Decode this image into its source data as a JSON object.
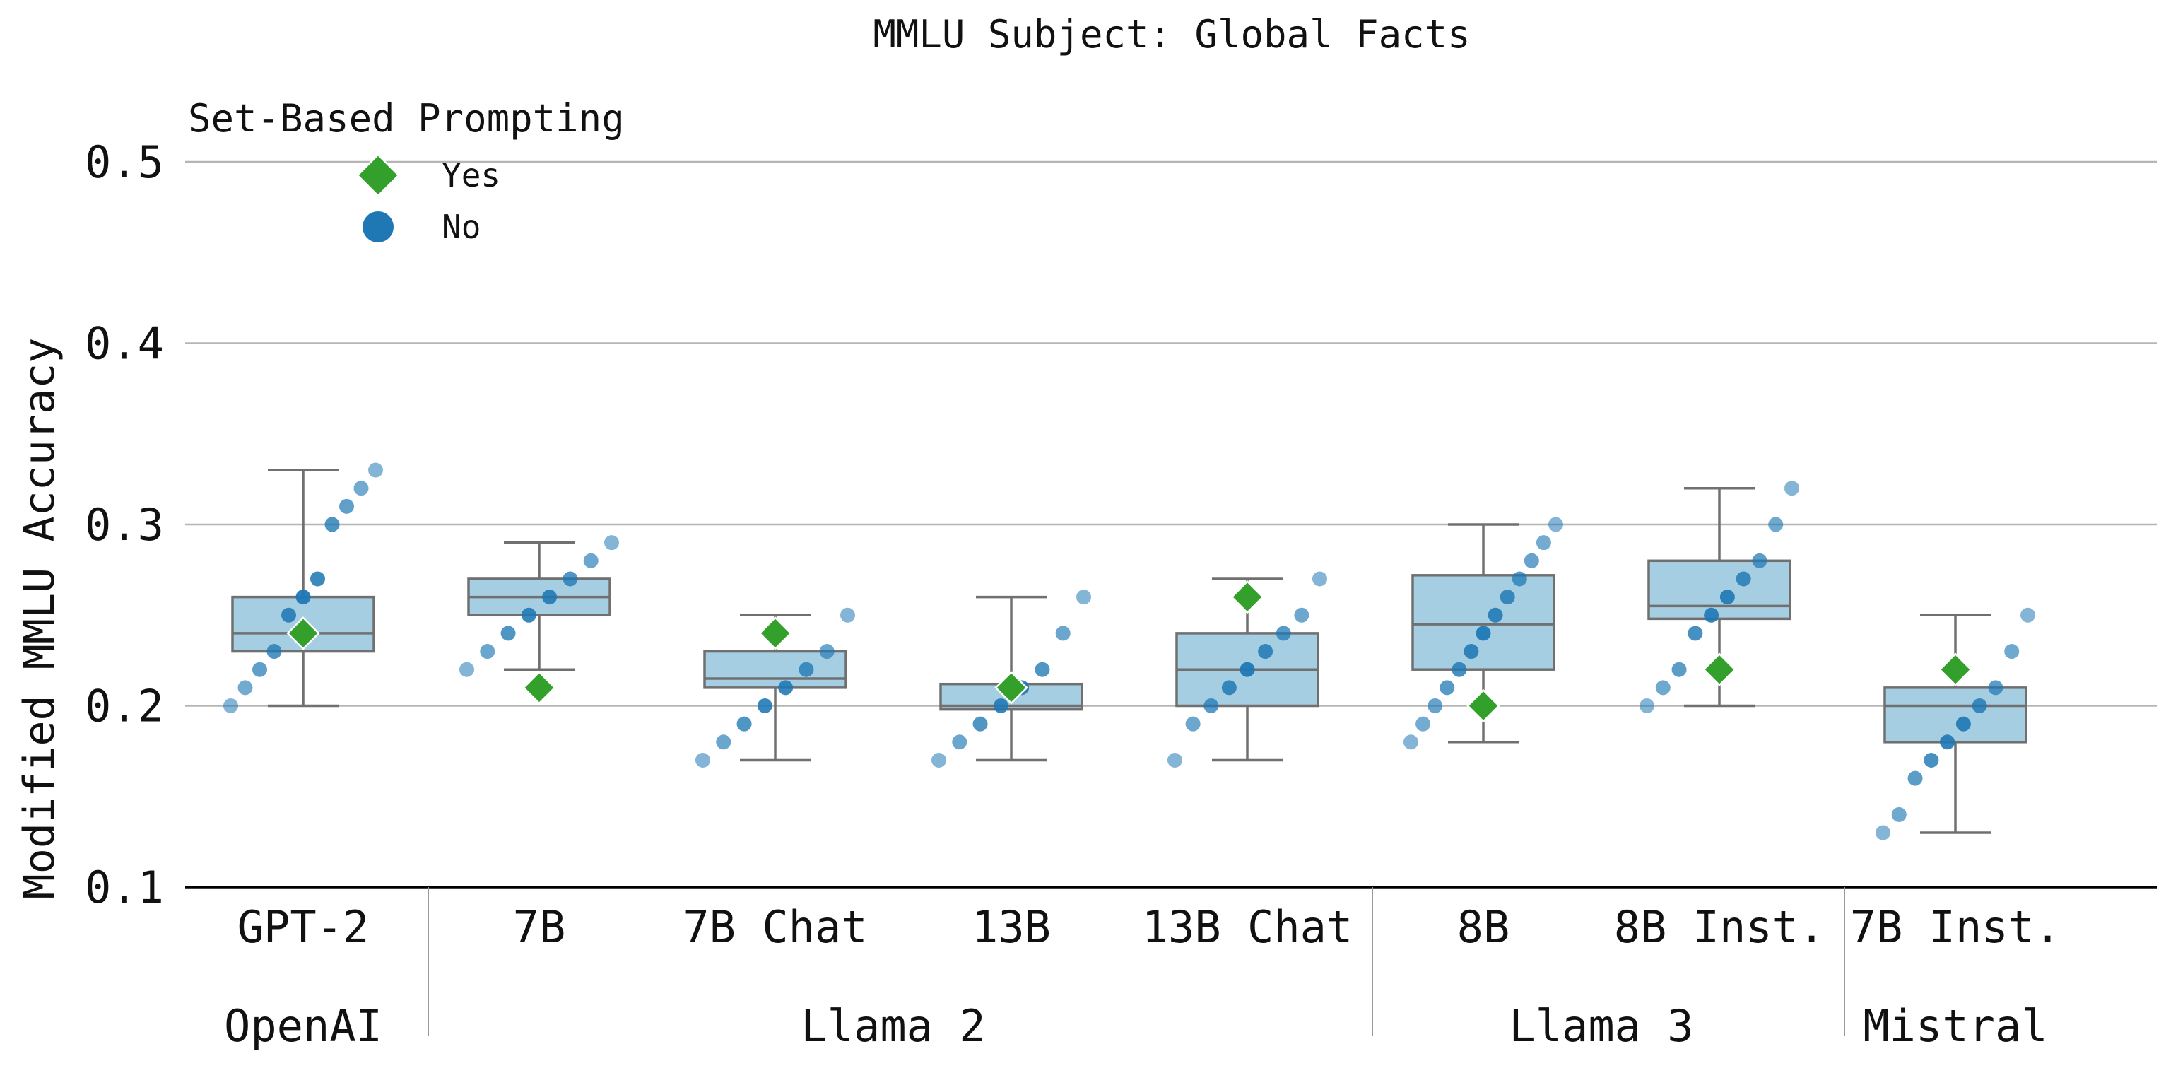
{
  "chart_data": {
    "type": "box",
    "title": "MMLU Subject: Global Facts",
    "xlabel": "",
    "ylabel": "Modified MMLU Accuracy",
    "ylim": [
      0.1,
      0.5
    ],
    "yticks": [
      "0.1",
      "0.2",
      "0.3",
      "0.4",
      "0.5"
    ],
    "grid": "horizontal",
    "legend": {
      "title": "Set-Based Prompting",
      "placement": "top-left",
      "entries": [
        {
          "label": "Yes",
          "marker": "diamond",
          "color": "#33a02c"
        },
        {
          "label": "No",
          "marker": "circle",
          "color": "#1f78b4"
        }
      ]
    },
    "colors": {
      "box_fill": "#a6cee3",
      "box_edge": "#707070",
      "yes": "#33a02c",
      "no": "#1f78b4"
    },
    "groups": [
      {
        "label": "OpenAI",
        "categories": [
          "GPT-2"
        ]
      },
      {
        "label": "Llama 2",
        "categories": [
          "7B",
          "7B Chat",
          "13B",
          "13B Chat"
        ]
      },
      {
        "label": "Llama 3",
        "categories": [
          "8B",
          "8B Inst."
        ]
      },
      {
        "label": "Mistral",
        "categories": [
          "7B Inst."
        ]
      }
    ],
    "categories": [
      "GPT-2",
      "7B",
      "7B Chat",
      "13B",
      "13B Chat",
      "8B",
      "8B Inst.",
      "7B Inst."
    ],
    "boxes": [
      {
        "whislo": 0.2,
        "q1": 0.23,
        "med": 0.24,
        "q3": 0.26,
        "whishi": 0.33
      },
      {
        "whislo": 0.22,
        "q1": 0.25,
        "med": 0.26,
        "q3": 0.27,
        "whishi": 0.29
      },
      {
        "whislo": 0.17,
        "q1": 0.21,
        "med": 0.215,
        "q3": 0.23,
        "whishi": 0.25
      },
      {
        "whislo": 0.17,
        "q1": 0.198,
        "med": 0.2,
        "q3": 0.212,
        "whishi": 0.26
      },
      {
        "whislo": 0.17,
        "q1": 0.2,
        "med": 0.22,
        "q3": 0.24,
        "whishi": 0.27
      },
      {
        "whislo": 0.18,
        "q1": 0.22,
        "med": 0.245,
        "q3": 0.272,
        "whishi": 0.3
      },
      {
        "whislo": 0.2,
        "q1": 0.248,
        "med": 0.255,
        "q3": 0.28,
        "whishi": 0.32
      },
      {
        "whislo": 0.13,
        "q1": 0.18,
        "med": 0.2,
        "q3": 0.21,
        "whishi": 0.25
      }
    ],
    "series": [
      {
        "name": "Yes",
        "values": [
          0.24,
          0.21,
          0.24,
          0.21,
          0.26,
          0.2,
          0.22,
          0.22
        ]
      },
      {
        "name": "No",
        "values": [
          [
            0.2,
            0.21,
            0.22,
            0.23,
            0.25,
            0.26,
            0.27,
            0.3,
            0.31,
            0.32,
            0.33
          ],
          [
            0.22,
            0.23,
            0.24,
            0.25,
            0.26,
            0.27,
            0.28,
            0.29
          ],
          [
            0.17,
            0.18,
            0.19,
            0.2,
            0.21,
            0.22,
            0.23,
            0.25
          ],
          [
            0.17,
            0.18,
            0.19,
            0.2,
            0.21,
            0.22,
            0.24,
            0.26
          ],
          [
            0.17,
            0.19,
            0.2,
            0.21,
            0.22,
            0.23,
            0.24,
            0.25,
            0.27
          ],
          [
            0.18,
            0.19,
            0.2,
            0.21,
            0.22,
            0.23,
            0.24,
            0.25,
            0.26,
            0.27,
            0.28,
            0.29,
            0.3
          ],
          [
            0.2,
            0.21,
            0.22,
            0.24,
            0.25,
            0.26,
            0.27,
            0.28,
            0.3,
            0.32
          ],
          [
            0.13,
            0.14,
            0.16,
            0.17,
            0.18,
            0.19,
            0.2,
            0.21,
            0.23,
            0.25
          ]
        ]
      }
    ]
  }
}
